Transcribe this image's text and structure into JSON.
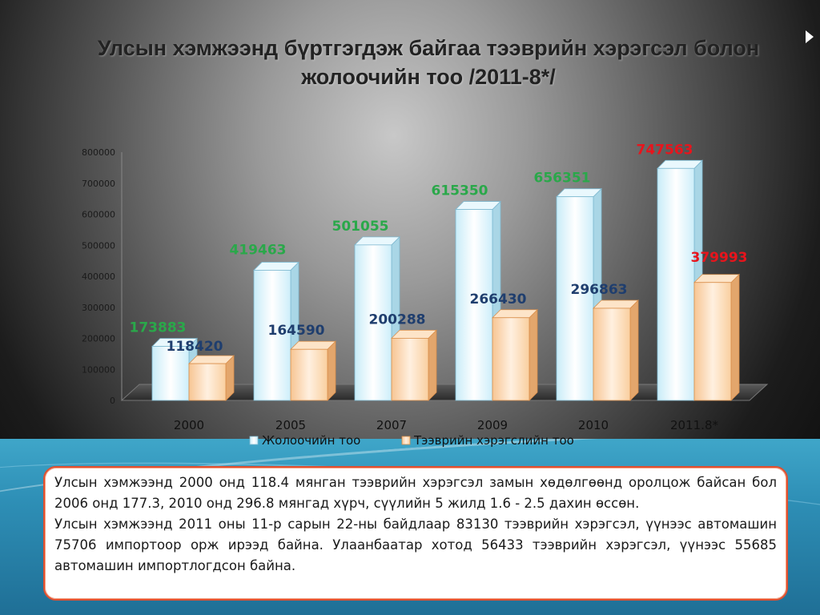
{
  "title": {
    "line1": "Улсын хэмжээнд бүртгэгдэж байгаа тээврийн хэрэгсэл болон",
    "line2": "жолоочийн тоо /2011-8*/"
  },
  "chart_data": {
    "type": "bar",
    "categories": [
      "2000",
      "2005",
      "2007",
      "2009",
      "2010",
      "2011.8*"
    ],
    "series": [
      {
        "name": "Жолоочийн тоо",
        "values": [
          173883,
          419463,
          501055,
          615350,
          656351,
          747563
        ],
        "label_colors": [
          "#2aa84a",
          "#2aa84a",
          "#2aa84a",
          "#2aa84a",
          "#2aa84a",
          "#e8141c"
        ]
      },
      {
        "name": "Тээврийн хэрэгслийн тоо",
        "values": [
          118420,
          164590,
          200288,
          266430,
          296863,
          379993
        ],
        "label_colors": [
          "#1f3e6e",
          "#1f3e6e",
          "#1f3e6e",
          "#1f3e6e",
          "#1f3e6e",
          "#e8141c"
        ]
      }
    ],
    "y_ticks": [
      "0",
      "100000",
      "200000",
      "300000",
      "400000",
      "500000",
      "600000",
      "700000",
      "800000"
    ],
    "ylim": [
      0,
      800000
    ],
    "legend_placement": "bottom",
    "colors": {
      "drivers": "#dff4fb",
      "vehicles": "#fcd9b4"
    }
  },
  "paragraphs": [
    "Улсын хэмжээнд 2000 онд 118.4 мянган тээврийн хэрэгсэл замын хөдөлгөөнд оролцож байсан бол 2006 онд 177.3, 2010 онд 296.8 мянгад хүрч, сүүлийн 5 жилд 1.6 - 2.5 дахин өссөн.",
    "Улсын хэмжээнд 2011 оны 11-р сарын 22-ны байдлаар 83130 тээврийн хэрэгсэл, үүнээс автомашин 75706 импортоор орж ирээд байна. Улаанбаатар хотод 56433 тээврийн хэрэгсэл, үүнээс 55685 автомашин импортлогдсон байна."
  ]
}
